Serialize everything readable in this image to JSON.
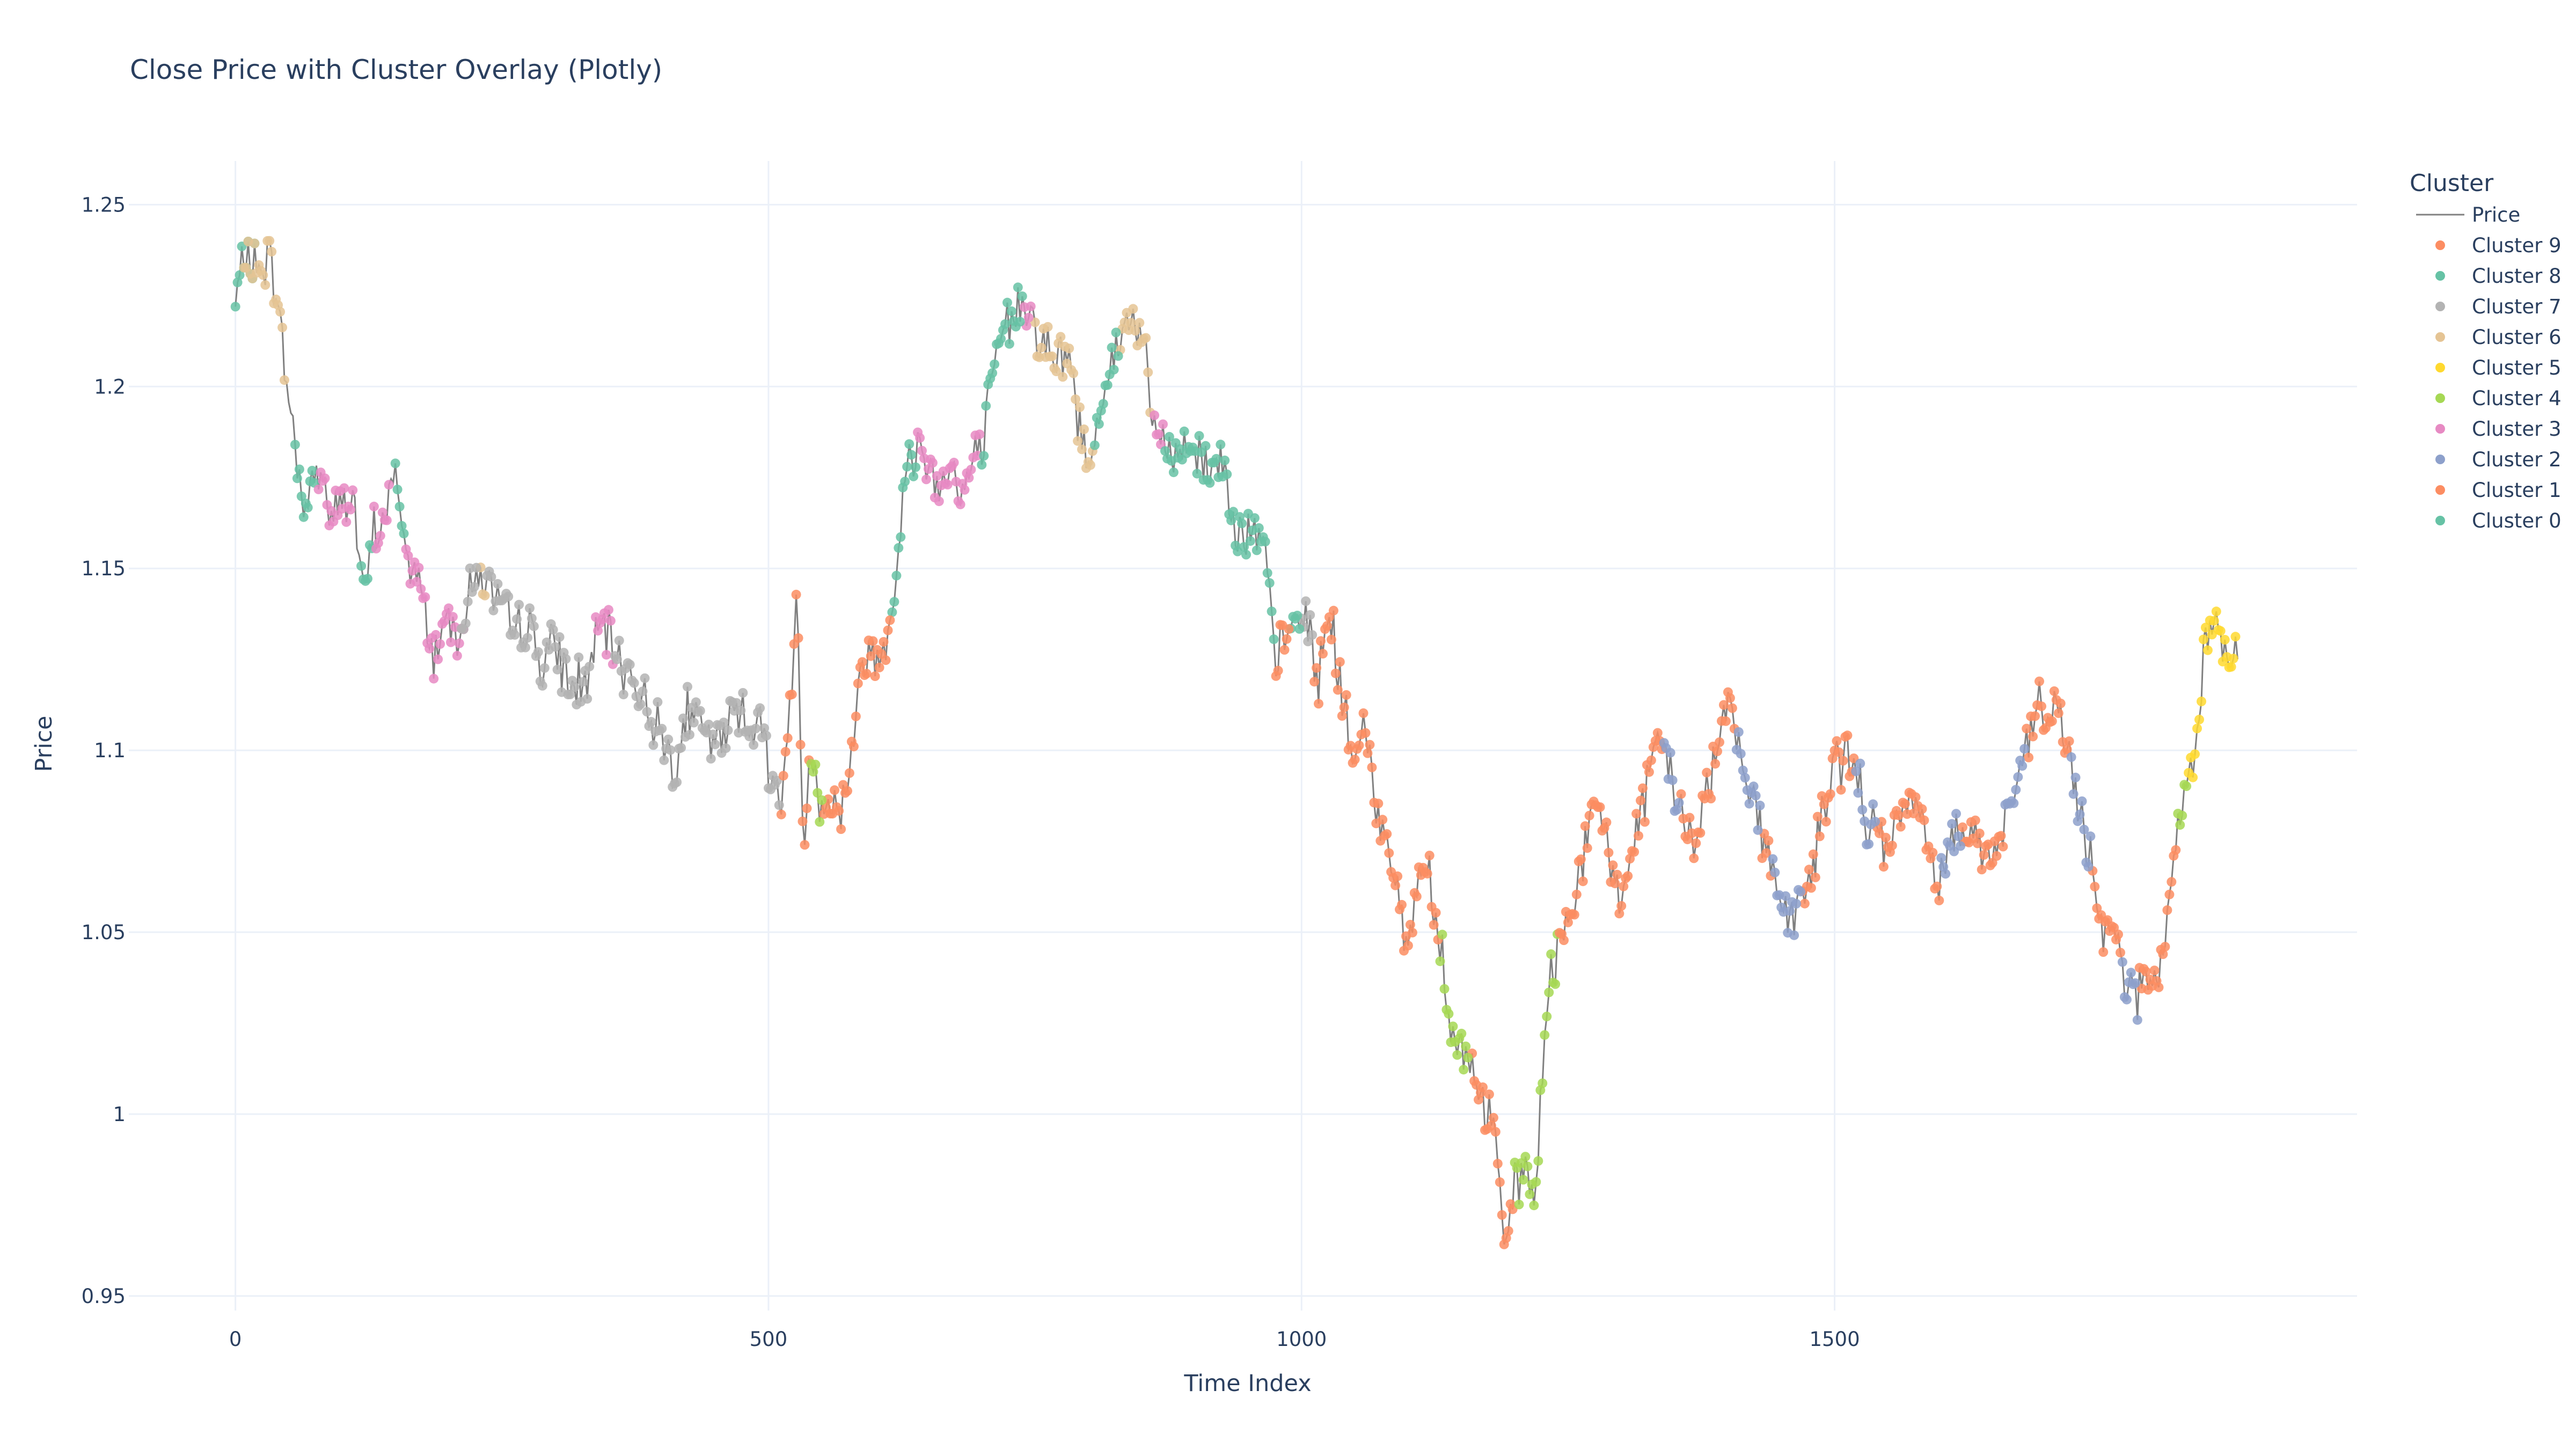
{
  "chart_data": {
    "type": "scatter",
    "title": "Close Price with Cluster Overlay (Plotly)",
    "xlabel": "Time Index",
    "ylabel": "Price",
    "xlim": [
      -100,
      1990
    ],
    "ylim": [
      0.946,
      1.262
    ],
    "xticks": [
      0,
      500,
      1000,
      1500
    ],
    "xtick_labels": [
      "0",
      "500",
      "1000",
      "1500"
    ],
    "yticks": [
      0.95,
      1,
      1.05,
      1.1,
      1.15,
      1.2,
      1.25
    ],
    "ytick_labels": [
      "0.95",
      "1",
      "1.05",
      "1.1",
      "1.15",
      "1.2",
      "1.25"
    ],
    "grid": true,
    "legend": {
      "title": "Cluster",
      "placement": "right",
      "entries": [
        {
          "name": "Price",
          "kind": "line",
          "color": "#808080"
        },
        {
          "name": "Cluster 9",
          "kind": "marker",
          "color": "#FC8D62"
        },
        {
          "name": "Cluster 8",
          "kind": "marker",
          "color": "#66C2A5"
        },
        {
          "name": "Cluster 7",
          "kind": "marker",
          "color": "#B3B3B3"
        },
        {
          "name": "Cluster 6",
          "kind": "marker",
          "color": "#E5C494"
        },
        {
          "name": "Cluster 5",
          "kind": "marker",
          "color": "#FFD92F"
        },
        {
          "name": "Cluster 4",
          "kind": "marker",
          "color": "#A6D854"
        },
        {
          "name": "Cluster 3",
          "kind": "marker",
          "color": "#E78AC3"
        },
        {
          "name": "Cluster 2",
          "kind": "marker",
          "color": "#8DA0CB"
        },
        {
          "name": "Cluster 1",
          "kind": "marker",
          "color": "#FC8D62"
        },
        {
          "name": "Cluster 0",
          "kind": "marker",
          "color": "#66C2A5"
        }
      ]
    },
    "series": [
      {
        "name": "Price",
        "kind": "line",
        "color": "#808080",
        "points": [
          [
            0,
            1.222
          ],
          [
            10,
            1.238
          ],
          [
            20,
            1.231
          ],
          [
            30,
            1.236
          ],
          [
            40,
            1.225
          ],
          [
            45,
            1.208
          ],
          [
            50,
            1.196
          ],
          [
            55,
            1.187
          ],
          [
            60,
            1.176
          ],
          [
            65,
            1.165
          ],
          [
            70,
            1.172
          ],
          [
            80,
            1.178
          ],
          [
            90,
            1.163
          ],
          [
            100,
            1.17
          ],
          [
            110,
            1.168
          ],
          [
            115,
            1.158
          ],
          [
            120,
            1.14
          ],
          [
            130,
            1.16
          ],
          [
            140,
            1.164
          ],
          [
            150,
            1.176
          ],
          [
            155,
            1.168
          ],
          [
            160,
            1.152
          ],
          [
            170,
            1.148
          ],
          [
            180,
            1.136
          ],
          [
            185,
            1.125
          ],
          [
            195,
            1.136
          ],
          [
            210,
            1.134
          ],
          [
            220,
            1.143
          ],
          [
            230,
            1.15
          ],
          [
            245,
            1.14
          ],
          [
            260,
            1.133
          ],
          [
            275,
            1.135
          ],
          [
            285,
            1.125
          ],
          [
            300,
            1.128
          ],
          [
            315,
            1.117
          ],
          [
            330,
            1.12
          ],
          [
            345,
            1.135
          ],
          [
            355,
            1.126
          ],
          [
            370,
            1.122
          ],
          [
            385,
            1.112
          ],
          [
            400,
            1.105
          ],
          [
            410,
            1.096
          ],
          [
            425,
            1.111
          ],
          [
            440,
            1.104
          ],
          [
            455,
            1.101
          ],
          [
            470,
            1.113
          ],
          [
            485,
            1.108
          ],
          [
            495,
            1.104
          ],
          [
            505,
            1.092
          ],
          [
            512,
            1.082
          ],
          [
            520,
            1.114
          ],
          [
            527,
            1.14
          ],
          [
            533,
            1.072
          ],
          [
            540,
            1.102
          ],
          [
            548,
            1.086
          ],
          [
            556,
            1.088
          ],
          [
            565,
            1.082
          ],
          [
            575,
            1.092
          ],
          [
            590,
            1.128
          ],
          [
            600,
            1.124
          ],
          [
            610,
            1.132
          ],
          [
            620,
            1.15
          ],
          [
            630,
            1.178
          ],
          [
            640,
            1.184
          ],
          [
            650,
            1.18
          ],
          [
            660,
            1.172
          ],
          [
            670,
            1.181
          ],
          [
            680,
            1.168
          ],
          [
            690,
            1.178
          ],
          [
            700,
            1.183
          ],
          [
            710,
            1.2
          ],
          [
            720,
            1.215
          ],
          [
            730,
            1.22
          ],
          [
            740,
            1.226
          ],
          [
            750,
            1.216
          ],
          [
            760,
            1.212
          ],
          [
            770,
            1.205
          ],
          [
            780,
            1.21
          ],
          [
            790,
            1.192
          ],
          [
            800,
            1.178
          ],
          [
            810,
            1.195
          ],
          [
            820,
            1.205
          ],
          [
            830,
            1.212
          ],
          [
            840,
            1.22
          ],
          [
            850,
            1.215
          ],
          [
            860,
            1.19
          ],
          [
            870,
            1.184
          ],
          [
            880,
            1.18
          ],
          [
            895,
            1.185
          ],
          [
            910,
            1.178
          ],
          [
            925,
            1.18
          ],
          [
            940,
            1.162
          ],
          [
            955,
            1.158
          ],
          [
            965,
            1.155
          ],
          [
            975,
            1.125
          ],
          [
            990,
            1.133
          ],
          [
            1005,
            1.138
          ],
          [
            1015,
            1.118
          ],
          [
            1025,
            1.14
          ],
          [
            1032,
            1.127
          ],
          [
            1040,
            1.11
          ],
          [
            1050,
            1.098
          ],
          [
            1060,
            1.105
          ],
          [
            1070,
            1.085
          ],
          [
            1080,
            1.078
          ],
          [
            1090,
            1.06
          ],
          [
            1100,
            1.045
          ],
          [
            1110,
            1.068
          ],
          [
            1120,
            1.066
          ],
          [
            1130,
            1.05
          ],
          [
            1140,
            1.022
          ],
          [
            1150,
            1.018
          ],
          [
            1160,
            1.012
          ],
          [
            1170,
            1.002
          ],
          [
            1180,
            1.0
          ],
          [
            1190,
            0.962
          ],
          [
            1200,
            0.978
          ],
          [
            1210,
            0.985
          ],
          [
            1220,
            0.978
          ],
          [
            1230,
            1.03
          ],
          [
            1240,
            1.045
          ],
          [
            1250,
            1.055
          ],
          [
            1260,
            1.065
          ],
          [
            1270,
            1.078
          ],
          [
            1280,
            1.085
          ],
          [
            1290,
            1.068
          ],
          [
            1300,
            1.06
          ],
          [
            1310,
            1.072
          ],
          [
            1320,
            1.085
          ],
          [
            1330,
            1.095
          ],
          [
            1340,
            1.102
          ],
          [
            1350,
            1.09
          ],
          [
            1360,
            1.078
          ],
          [
            1370,
            1.072
          ],
          [
            1380,
            1.092
          ],
          [
            1390,
            1.098
          ],
          [
            1400,
            1.118
          ],
          [
            1410,
            1.102
          ],
          [
            1420,
            1.09
          ],
          [
            1430,
            1.08
          ],
          [
            1440,
            1.07
          ],
          [
            1450,
            1.058
          ],
          [
            1460,
            1.052
          ],
          [
            1470,
            1.06
          ],
          [
            1480,
            1.068
          ],
          [
            1490,
            1.085
          ],
          [
            1500,
            1.095
          ],
          [
            1510,
            1.1
          ],
          [
            1520,
            1.092
          ],
          [
            1530,
            1.082
          ],
          [
            1540,
            1.078
          ],
          [
            1550,
            1.07
          ],
          [
            1560,
            1.08
          ],
          [
            1570,
            1.09
          ],
          [
            1580,
            1.08
          ],
          [
            1590,
            1.07
          ],
          [
            1600,
            1.065
          ],
          [
            1610,
            1.076
          ],
          [
            1620,
            1.082
          ],
          [
            1630,
            1.078
          ],
          [
            1640,
            1.072
          ],
          [
            1650,
            1.07
          ],
          [
            1660,
            1.082
          ],
          [
            1670,
            1.09
          ],
          [
            1680,
            1.098
          ],
          [
            1690,
            1.112
          ],
          [
            1700,
            1.108
          ],
          [
            1710,
            1.112
          ],
          [
            1720,
            1.096
          ],
          [
            1730,
            1.082
          ],
          [
            1740,
            1.07
          ],
          [
            1750,
            1.052
          ],
          [
            1760,
            1.055
          ],
          [
            1770,
            1.042
          ],
          [
            1780,
            1.03
          ],
          [
            1790,
            1.038
          ],
          [
            1800,
            1.035
          ],
          [
            1810,
            1.045
          ],
          [
            1820,
            1.072
          ],
          [
            1830,
            1.09
          ],
          [
            1840,
            1.102
          ],
          [
            1848,
            1.132
          ],
          [
            1855,
            1.14
          ],
          [
            1862,
            1.13
          ],
          [
            1870,
            1.122
          ],
          [
            1878,
            1.128
          ]
        ]
      },
      {
        "name": "Cluster 0",
        "kind": "marker",
        "color": "#66C2A5",
        "ranges": [
          [
            0,
            20
          ],
          [
            55,
            75
          ],
          [
            118,
            130
          ],
          [
            150,
            160
          ]
        ]
      },
      {
        "name": "Cluster 6",
        "kind": "marker",
        "color": "#E5C494",
        "ranges": [
          [
            8,
            48
          ],
          [
            230,
            236
          ],
          [
            750,
            805
          ],
          [
            830,
            860
          ]
        ]
      },
      {
        "name": "Cluster 3",
        "kind": "marker",
        "color": "#E78AC3",
        "ranges": [
          [
            78,
            112
          ],
          [
            130,
            146
          ],
          [
            160,
            215
          ],
          [
            338,
            355
          ],
          [
            640,
            700
          ],
          [
            740,
            748
          ],
          [
            862,
            872
          ]
        ]
      },
      {
        "name": "Cluster 7",
        "kind": "marker",
        "color": "#B3B3B3",
        "ranges": [
          [
            212,
            228
          ],
          [
            236,
            334
          ],
          [
            356,
            512
          ],
          [
            1000,
            1012
          ]
        ]
      },
      {
        "name": "Cluster 8",
        "kind": "marker",
        "color": "#66C2A5",
        "ranges": [
          [
            615,
            640
          ],
          [
            700,
            740
          ],
          [
            806,
            830
          ],
          [
            872,
            975
          ],
          [
            990,
            1000
          ]
        ]
      },
      {
        "name": "Cluster 9",
        "kind": "marker",
        "color": "#FC8D62",
        "ranges": [
          [
            512,
            540
          ],
          [
            552,
            615
          ],
          [
            975,
            990
          ],
          [
            1012,
            1130
          ],
          [
            1160,
            1200
          ]
        ]
      },
      {
        "name": "Cluster 4",
        "kind": "marker",
        "color": "#A6D854",
        "ranges": [
          [
            540,
            552
          ],
          [
            1130,
            1158
          ],
          [
            1200,
            1242
          ],
          [
            1822,
            1832
          ]
        ]
      },
      {
        "name": "Cluster 1",
        "kind": "marker",
        "color": "#FC8D62",
        "ranges": [
          [
            1242,
            1340
          ],
          [
            1355,
            1408
          ],
          [
            1432,
            1442
          ],
          [
            1470,
            1520
          ],
          [
            1540,
            1600
          ],
          [
            1620,
            1660
          ],
          [
            1680,
            1722
          ],
          [
            1742,
            1770
          ],
          [
            1786,
            1822
          ]
        ]
      },
      {
        "name": "Cluster 2",
        "kind": "marker",
        "color": "#8DA0CB",
        "ranges": [
          [
            1340,
            1355
          ],
          [
            1408,
            1432
          ],
          [
            1442,
            1470
          ],
          [
            1520,
            1540
          ],
          [
            1600,
            1620
          ],
          [
            1660,
            1680
          ],
          [
            1722,
            1742
          ],
          [
            1770,
            1786
          ]
        ]
      },
      {
        "name": "Cluster 5",
        "kind": "marker",
        "color": "#FFD92F",
        "ranges": [
          [
            1832,
            1878
          ]
        ]
      }
    ]
  }
}
